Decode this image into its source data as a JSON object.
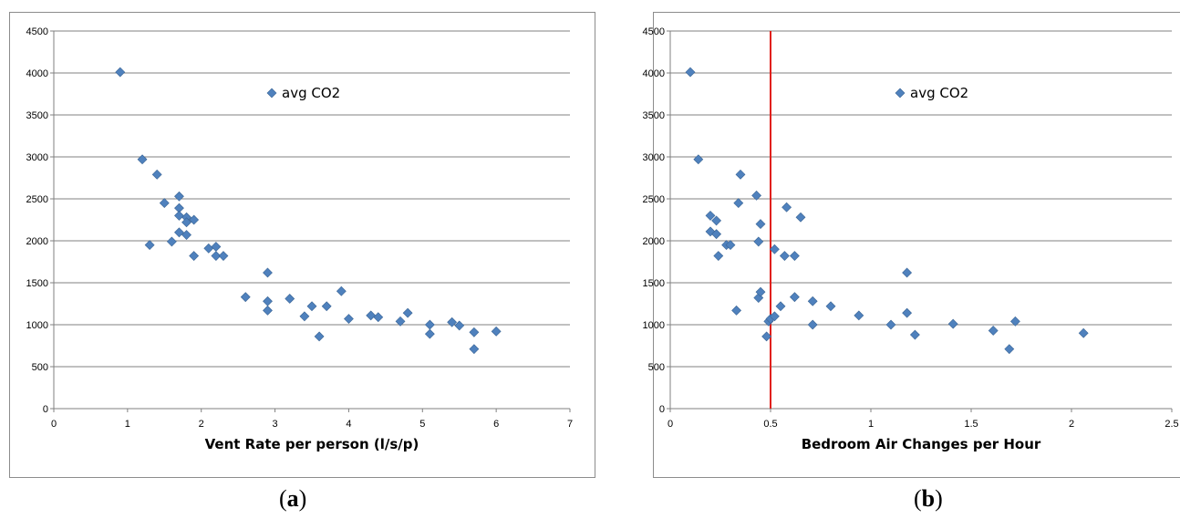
{
  "chart_data": [
    {
      "type": "scatter",
      "title": "",
      "xlabel": "Vent Rate per person (l/s/p)",
      "ylabel": "",
      "xlim": [
        0,
        7
      ],
      "ylim": [
        0,
        4500
      ],
      "xticks": [
        "0",
        "1",
        "2",
        "3",
        "4",
        "5",
        "6",
        "7"
      ],
      "yticks": [
        "0",
        "500",
        "1000",
        "1500",
        "2000",
        "2500",
        "3000",
        "3500",
        "4000",
        "4500"
      ],
      "grid": true,
      "legend": "top-center",
      "series": [
        {
          "name": "avg CO2",
          "color": "#4f81bd",
          "points": [
            [
              0.9,
              4010
            ],
            [
              1.2,
              2970
            ],
            [
              1.4,
              2790
            ],
            [
              1.5,
              2450
            ],
            [
              1.3,
              1950
            ],
            [
              1.6,
              1990
            ],
            [
              1.7,
              2530
            ],
            [
              1.7,
              2390
            ],
            [
              1.7,
              2300
            ],
            [
              1.8,
              2280
            ],
            [
              1.8,
              2220
            ],
            [
              1.9,
              2250
            ],
            [
              1.7,
              2100
            ],
            [
              1.8,
              2070
            ],
            [
              1.9,
              1820
            ],
            [
              2.1,
              1910
            ],
            [
              2.2,
              1930
            ],
            [
              2.2,
              1820
            ],
            [
              2.3,
              1820
            ],
            [
              2.6,
              1330
            ],
            [
              2.9,
              1620
            ],
            [
              2.9,
              1280
            ],
            [
              2.9,
              1170
            ],
            [
              3.2,
              1310
            ],
            [
              3.4,
              1100
            ],
            [
              3.5,
              1220
            ],
            [
              3.6,
              860
            ],
            [
              3.7,
              1220
            ],
            [
              3.9,
              1400
            ],
            [
              4.0,
              1070
            ],
            [
              4.3,
              1110
            ],
            [
              4.4,
              1090
            ],
            [
              4.7,
              1040
            ],
            [
              4.8,
              1140
            ],
            [
              5.1,
              1000
            ],
            [
              5.1,
              890
            ],
            [
              5.4,
              1030
            ],
            [
              5.5,
              990
            ],
            [
              5.7,
              910
            ],
            [
              5.7,
              710
            ],
            [
              6.0,
              920
            ]
          ]
        }
      ]
    },
    {
      "type": "scatter",
      "title": "",
      "xlabel": "Bedroom Air Changes per Hour",
      "ylabel": "",
      "xlim": [
        0,
        2.5
      ],
      "ylim": [
        0,
        4500
      ],
      "xticks": [
        "0",
        "0.5",
        "1",
        "1.5",
        "2",
        "2.5"
      ],
      "yticks": [
        "0",
        "500",
        "1000",
        "1500",
        "2000",
        "2500",
        "3000",
        "3500",
        "4000",
        "4500"
      ],
      "grid": true,
      "legend": "top-center",
      "reference_line": {
        "x": 0.5,
        "color": "#e0201a"
      },
      "series": [
        {
          "name": "avg CO2",
          "color": "#4f81bd",
          "points": [
            [
              0.1,
              4010
            ],
            [
              0.14,
              2970
            ],
            [
              0.2,
              2300
            ],
            [
              0.2,
              2110
            ],
            [
              0.23,
              2240
            ],
            [
              0.23,
              2080
            ],
            [
              0.24,
              1820
            ],
            [
              0.28,
              1950
            ],
            [
              0.3,
              1950
            ],
            [
              0.34,
              2450
            ],
            [
              0.35,
              2790
            ],
            [
              0.33,
              1170
            ],
            [
              0.43,
              2540
            ],
            [
              0.44,
              1990
            ],
            [
              0.45,
              2200
            ],
            [
              0.44,
              1320
            ],
            [
              0.45,
              1390
            ],
            [
              0.48,
              860
            ],
            [
              0.49,
              1040
            ],
            [
              0.5,
              1070
            ],
            [
              0.52,
              1100
            ],
            [
              0.52,
              1900
            ],
            [
              0.55,
              1220
            ],
            [
              0.57,
              1820
            ],
            [
              0.58,
              2400
            ],
            [
              0.62,
              1820
            ],
            [
              0.62,
              1330
            ],
            [
              0.65,
              2280
            ],
            [
              0.71,
              1280
            ],
            [
              0.71,
              1000
            ],
            [
              0.8,
              1220
            ],
            [
              0.94,
              1110
            ],
            [
              1.1,
              1000
            ],
            [
              1.18,
              1620
            ],
            [
              1.18,
              1140
            ],
            [
              1.22,
              880
            ],
            [
              1.41,
              1010
            ],
            [
              1.61,
              930
            ],
            [
              1.69,
              710
            ],
            [
              1.72,
              1040
            ],
            [
              2.06,
              900
            ]
          ]
        }
      ]
    }
  ],
  "captions": {
    "a": "(a)",
    "b": "(b)"
  }
}
